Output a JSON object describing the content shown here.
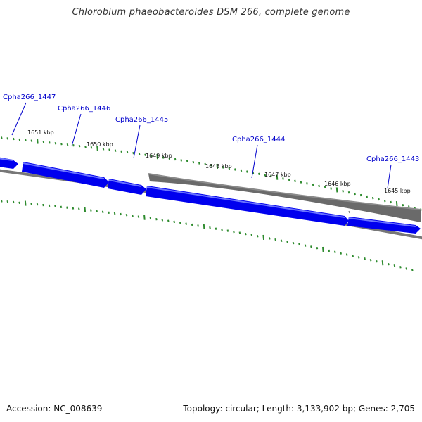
{
  "title": "Chlorobium phaeobacteroides DSM 266, complete genome",
  "footer": {
    "accession": "Accession: NC_008639",
    "summary": "Topology: circular; Length: 3,133,902 bp; Genes: 2,705"
  },
  "colors": {
    "forward_gene": "#0000ee",
    "forward_gene_highlight": "#5a64ff",
    "reverse_gene": "#6a6a6a",
    "backbone": "#777777",
    "ticks": "#2e8b2e",
    "gene_label": "#0000cc"
  },
  "kbp_labels": [
    "1651 kbp",
    "1650 kbp",
    "1649 kbp",
    "1648 kbp",
    "1647 kbp",
    "1646 kbp",
    "1645 kbp"
  ],
  "genes": [
    {
      "label": "Cpha266_1447",
      "strand": "forward"
    },
    {
      "label": "Cpha266_1446",
      "strand": "forward"
    },
    {
      "label": "Cpha266_1445",
      "strand": "forward"
    },
    {
      "label": "Cpha266_1444",
      "strand": "reverse"
    },
    {
      "label": "Cpha266_1443",
      "strand": "forward"
    }
  ]
}
